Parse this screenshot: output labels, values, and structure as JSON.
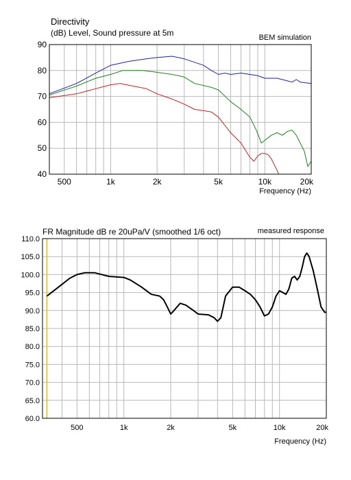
{
  "charts": {
    "directivity": {
      "title": "Directivity",
      "subtitle": "(dB)  Level, Sound pressure at 5m",
      "annotation": "BEM simulation",
      "xlabel": "Frequency  (Hz)"
    },
    "fr": {
      "title": "FR Magnitude dB re 20uPa/V (smoothed 1/6 oct)",
      "annotation": "measured response",
      "xlabel": "Frequency (Hz)"
    }
  },
  "chart_data": [
    {
      "type": "line",
      "title": "Directivity",
      "subtitle": "(dB)  Level, Sound pressure at 5m",
      "annotation": "BEM simulation",
      "xlabel": "Frequency  (Hz)",
      "ylabel": "",
      "x_scale": "log",
      "xlim": [
        400,
        20000
      ],
      "ylim": [
        40,
        90
      ],
      "grid": true,
      "x_ticks": [
        {
          "value": 500,
          "label": "500"
        },
        {
          "value": 1000,
          "label": "1k"
        },
        {
          "value": 2000,
          "label": "2k"
        },
        {
          "value": 5000,
          "label": "5k"
        },
        {
          "value": 10000,
          "label": "10k"
        },
        {
          "value": 20000,
          "label": "20k"
        }
      ],
      "y_ticks": [
        40,
        50,
        60,
        70,
        80,
        90
      ],
      "series": [
        {
          "color": "#2020a0",
          "points": [
            [
              400,
              71
            ],
            [
              600,
              75
            ],
            [
              800,
              79
            ],
            [
              1000,
              82
            ],
            [
              1300,
              83.5
            ],
            [
              1700,
              84.5
            ],
            [
              2000,
              85
            ],
            [
              2500,
              85.5
            ],
            [
              3000,
              84.5
            ],
            [
              4000,
              82
            ],
            [
              4500,
              80
            ],
            [
              5000,
              78.5
            ],
            [
              5500,
              79
            ],
            [
              6000,
              78.5
            ],
            [
              7000,
              79
            ],
            [
              8000,
              78.5
            ],
            [
              9000,
              78
            ],
            [
              10000,
              77
            ],
            [
              12000,
              77
            ],
            [
              14000,
              76
            ],
            [
              15000,
              75.5
            ],
            [
              16000,
              76.5
            ],
            [
              17000,
              75.5
            ],
            [
              20000,
              75
            ]
          ]
        },
        {
          "color": "#208020",
          "points": [
            [
              400,
              70.5
            ],
            [
              600,
              74
            ],
            [
              800,
              77
            ],
            [
              1000,
              78.5
            ],
            [
              1200,
              80
            ],
            [
              1600,
              80
            ],
            [
              1900,
              79.5
            ],
            [
              2500,
              78.5
            ],
            [
              3000,
              77.5
            ],
            [
              3500,
              75
            ],
            [
              4500,
              73.5
            ],
            [
              5000,
              72.5
            ],
            [
              6000,
              68
            ],
            [
              7000,
              65
            ],
            [
              8000,
              62
            ],
            [
              8800,
              57
            ],
            [
              9500,
              52
            ],
            [
              11000,
              55
            ],
            [
              12000,
              56
            ],
            [
              13000,
              55
            ],
            [
              14000,
              56.5
            ],
            [
              15000,
              57
            ],
            [
              16000,
              55
            ],
            [
              18000,
              49
            ],
            [
              19000,
              43
            ],
            [
              20000,
              45
            ],
            [
              21000,
              46
            ]
          ]
        },
        {
          "color": "#c02020",
          "points": [
            [
              400,
              69.5
            ],
            [
              600,
              71
            ],
            [
              800,
              73
            ],
            [
              1000,
              74.5
            ],
            [
              1150,
              75
            ],
            [
              1400,
              74
            ],
            [
              1700,
              73
            ],
            [
              2000,
              71
            ],
            [
              2500,
              69
            ],
            [
              3000,
              67
            ],
            [
              3500,
              65
            ],
            [
              4000,
              64.5
            ],
            [
              4500,
              64
            ],
            [
              5000,
              62
            ],
            [
              6000,
              56
            ],
            [
              7000,
              52
            ],
            [
              8000,
              46.5
            ],
            [
              8500,
              45
            ],
            [
              9000,
              47
            ],
            [
              9500,
              48
            ],
            [
              10000,
              48
            ],
            [
              10500,
              47.5
            ],
            [
              11000,
              46
            ],
            [
              12000,
              41.5
            ],
            [
              12500,
              39
            ]
          ]
        }
      ]
    },
    {
      "type": "line",
      "title": "FR Magnitude dB re 20uPa/V (smoothed 1/6 oct)",
      "annotation": "measured response",
      "xlabel": "Frequency (Hz)",
      "ylabel": "",
      "x_scale": "log",
      "xlim": [
        300,
        20000
      ],
      "ylim": [
        60,
        110
      ],
      "grid": true,
      "marker_line": {
        "x": 320,
        "color": "#d8c020"
      },
      "x_ticks": [
        {
          "value": 500,
          "label": "500"
        },
        {
          "value": 1000,
          "label": "1k"
        },
        {
          "value": 2000,
          "label": "2k"
        },
        {
          "value": 5000,
          "label": "5k"
        },
        {
          "value": 10000,
          "label": "10k"
        },
        {
          "value": 20000,
          "label": "20k"
        }
      ],
      "y_ticks": [
        "60.0",
        "65.0",
        "70.0",
        "75.0",
        "80.0",
        "85.0",
        "90.0",
        "95.0",
        "100.0",
        "105.0",
        "110.0"
      ],
      "series": [
        {
          "color": "#000000",
          "points": [
            [
              320,
              94
            ],
            [
              380,
              96.5
            ],
            [
              450,
              99
            ],
            [
              500,
              100
            ],
            [
              560,
              100.5
            ],
            [
              650,
              100.5
            ],
            [
              800,
              99.5
            ],
            [
              1000,
              99.2
            ],
            [
              1100,
              98.5
            ],
            [
              1300,
              96.5
            ],
            [
              1500,
              94.5
            ],
            [
              1700,
              94
            ],
            [
              1800,
              93
            ],
            [
              1900,
              91
            ],
            [
              2000,
              89
            ],
            [
              2100,
              90
            ],
            [
              2300,
              92
            ],
            [
              2500,
              91.5
            ],
            [
              2800,
              90
            ],
            [
              3000,
              89
            ],
            [
              3500,
              88.8
            ],
            [
              3800,
              88
            ],
            [
              4000,
              87
            ],
            [
              4200,
              88
            ],
            [
              4500,
              94
            ],
            [
              5000,
              96.5
            ],
            [
              5500,
              96.5
            ],
            [
              6000,
              95.5
            ],
            [
              6500,
              94.5
            ],
            [
              7000,
              93
            ],
            [
              7500,
              91
            ],
            [
              8000,
              88.5
            ],
            [
              8500,
              89
            ],
            [
              9000,
              91
            ],
            [
              9500,
              94
            ],
            [
              10000,
              95.5
            ],
            [
              10500,
              95
            ],
            [
              11000,
              94.5
            ],
            [
              11500,
              96
            ],
            [
              12000,
              99
            ],
            [
              12500,
              99.5
            ],
            [
              13000,
              98.5
            ],
            [
              13500,
              99.5
            ],
            [
              14000,
              102
            ],
            [
              14500,
              105
            ],
            [
              15000,
              106
            ],
            [
              15500,
              105
            ],
            [
              16500,
              101
            ],
            [
              17500,
              96
            ],
            [
              18500,
              91
            ],
            [
              19500,
              89.5
            ],
            [
              20500,
              89.5
            ],
            [
              21500,
              88
            ],
            [
              22500,
              86
            ]
          ]
        }
      ]
    }
  ]
}
